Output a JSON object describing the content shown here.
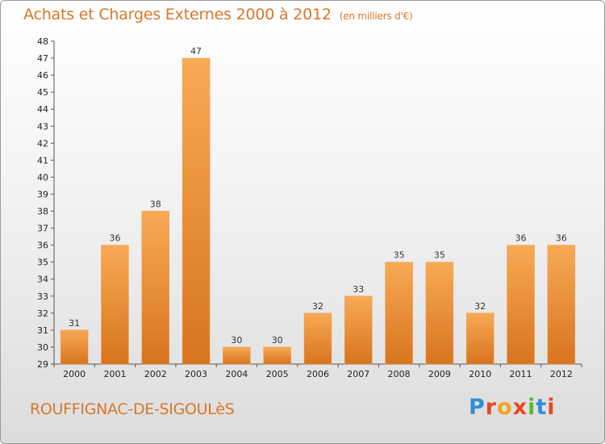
{
  "header": {
    "title": "Achats et Charges Externes 2000 à 2012",
    "unit": "(en milliers d'€)"
  },
  "footer": {
    "commune": "ROUFFIGNAC-DE-SIGOULèS",
    "logo_text": "Proxiti"
  },
  "colors": {
    "title": "#d8772a",
    "bar_light": "#f8aa55",
    "bar_dark": "#d8741e"
  },
  "chart_data": {
    "type": "bar",
    "categories": [
      "2000",
      "2001",
      "2002",
      "2003",
      "2004",
      "2005",
      "2006",
      "2007",
      "2008",
      "2009",
      "2010",
      "2011",
      "2012"
    ],
    "values": [
      31,
      36,
      38,
      47,
      30,
      30,
      32,
      33,
      35,
      35,
      32,
      36,
      36
    ],
    "ylim": [
      29,
      48
    ],
    "yticks": [
      29,
      30,
      31,
      32,
      33,
      34,
      35,
      36,
      37,
      38,
      39,
      40,
      41,
      42,
      43,
      44,
      45,
      46,
      47,
      48
    ],
    "grid": false,
    "legend": "none"
  }
}
